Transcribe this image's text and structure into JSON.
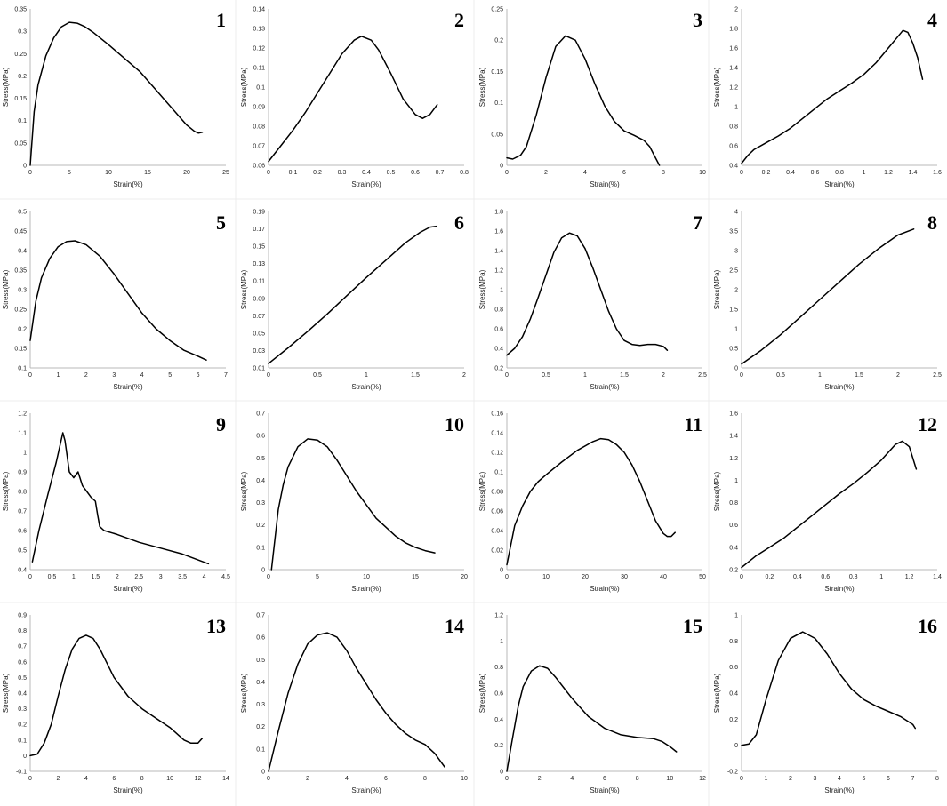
{
  "figure": {
    "title": "",
    "background": "#ffffff"
  },
  "chart_data": [
    {
      "panel": "1",
      "type": "line",
      "xlabel": "Strain(%)",
      "ylabel": "Stress(MPa)",
      "xlim": [
        0,
        25
      ],
      "ylim": [
        0,
        0.35
      ],
      "xticks": [
        "0",
        "5",
        "10",
        "15",
        "20",
        "25"
      ],
      "yticks": [
        "0",
        "0.05",
        "0.1",
        "0.15",
        "0.2",
        "0.25",
        "0.3",
        "0.35"
      ],
      "x": [
        0,
        0.5,
        1,
        2,
        3,
        4,
        5,
        6,
        7,
        8,
        10,
        12,
        14,
        16,
        18,
        19,
        20,
        21,
        21.5,
        22
      ],
      "y": [
        0,
        0.12,
        0.18,
        0.245,
        0.285,
        0.31,
        0.32,
        0.318,
        0.31,
        0.298,
        0.27,
        0.24,
        0.21,
        0.17,
        0.13,
        0.11,
        0.09,
        0.076,
        0.072,
        0.074
      ]
    },
    {
      "panel": "2",
      "type": "line",
      "xlabel": "Strain(%)",
      "ylabel": "Stress(MPa)",
      "xlim": [
        0,
        0.8
      ],
      "ylim": [
        0.06,
        0.14
      ],
      "xticks": [
        "0",
        "0.1",
        "0.2",
        "0.3",
        "0.4",
        "0.5",
        "0.6",
        "0.7",
        "0.8"
      ],
      "yticks": [
        "0.06",
        "0.07",
        "0.08",
        "0.09",
        "0.1",
        "0.11",
        "0.12",
        "0.13",
        "0.14"
      ],
      "x": [
        0,
        0.05,
        0.1,
        0.15,
        0.2,
        0.25,
        0.3,
        0.35,
        0.38,
        0.42,
        0.45,
        0.5,
        0.55,
        0.6,
        0.63,
        0.66,
        0.69
      ],
      "y": [
        0.062,
        0.07,
        0.078,
        0.087,
        0.097,
        0.107,
        0.117,
        0.124,
        0.126,
        0.124,
        0.119,
        0.107,
        0.094,
        0.086,
        0.084,
        0.086,
        0.091
      ]
    },
    {
      "panel": "3",
      "type": "line",
      "xlabel": "Strain(%)",
      "ylabel": "Stress(MPa)",
      "xlim": [
        0,
        10
      ],
      "ylim": [
        0,
        0.25
      ],
      "xticks": [
        "0",
        "2",
        "4",
        "6",
        "8",
        "10"
      ],
      "yticks": [
        "0",
        "0.05",
        "0.1",
        "0.15",
        "0.2",
        "0.25"
      ],
      "x": [
        0,
        0.3,
        0.7,
        1,
        1.5,
        2,
        2.5,
        3,
        3.5,
        4,
        4.5,
        5,
        5.5,
        6,
        6.5,
        7,
        7.3,
        7.6,
        7.8
      ],
      "y": [
        0.012,
        0.01,
        0.016,
        0.03,
        0.08,
        0.14,
        0.19,
        0.207,
        0.2,
        0.17,
        0.13,
        0.095,
        0.07,
        0.055,
        0.048,
        0.04,
        0.03,
        0.012,
        0
      ]
    },
    {
      "panel": "4",
      "type": "line",
      "xlabel": "Strain(%)",
      "ylabel": "Stress(MPa)",
      "xlim": [
        0,
        1.6
      ],
      "ylim": [
        0.4,
        2
      ],
      "xticks": [
        "0",
        "0.2",
        "0.4",
        "0.6",
        "0.8",
        "1",
        "1.2",
        "1.4",
        "1.6"
      ],
      "yticks": [
        "0.4",
        "0.6",
        "0.8",
        "1",
        "1.2",
        "1.4",
        "1.6",
        "1.8",
        "2"
      ],
      "x": [
        0,
        0.05,
        0.1,
        0.2,
        0.3,
        0.4,
        0.5,
        0.6,
        0.7,
        0.8,
        0.9,
        1,
        1.1,
        1.2,
        1.28,
        1.32,
        1.36,
        1.4,
        1.44,
        1.48
      ],
      "y": [
        0.42,
        0.5,
        0.56,
        0.63,
        0.7,
        0.78,
        0.88,
        0.98,
        1.08,
        1.16,
        1.24,
        1.33,
        1.45,
        1.6,
        1.72,
        1.78,
        1.76,
        1.65,
        1.5,
        1.28
      ]
    },
    {
      "panel": "5",
      "type": "line",
      "xlabel": "Strain(%)",
      "ylabel": "Stress(MPa)",
      "xlim": [
        0,
        7
      ],
      "ylim": [
        0.1,
        0.5
      ],
      "xticks": [
        "0",
        "1",
        "2",
        "3",
        "4",
        "5",
        "6",
        "7"
      ],
      "yticks": [
        "0.1",
        "0.15",
        "0.2",
        "0.25",
        "0.3",
        "0.35",
        "0.4",
        "0.45",
        "0.5"
      ],
      "x": [
        0,
        0.2,
        0.4,
        0.7,
        1,
        1.3,
        1.6,
        2,
        2.5,
        3,
        3.5,
        4,
        4.5,
        5,
        5.5,
        6,
        6.3
      ],
      "y": [
        0.17,
        0.27,
        0.33,
        0.38,
        0.41,
        0.423,
        0.425,
        0.415,
        0.385,
        0.34,
        0.29,
        0.24,
        0.2,
        0.17,
        0.145,
        0.13,
        0.12
      ]
    },
    {
      "panel": "6",
      "type": "line",
      "xlabel": "Strain(%)",
      "ylabel": "Stress(MPa)",
      "xlim": [
        0,
        2
      ],
      "ylim": [
        0.01,
        0.19
      ],
      "xticks": [
        "0",
        "0.5",
        "1",
        "1.5",
        "2"
      ],
      "yticks": [
        "0.01",
        "0.03",
        "0.05",
        "0.07",
        "0.09",
        "0.11",
        "0.13",
        "0.15",
        "0.17",
        "0.19"
      ],
      "x": [
        0,
        0.2,
        0.4,
        0.6,
        0.8,
        1,
        1.2,
        1.4,
        1.55,
        1.65,
        1.72
      ],
      "y": [
        0.015,
        0.033,
        0.052,
        0.072,
        0.093,
        0.114,
        0.134,
        0.154,
        0.166,
        0.172,
        0.173
      ]
    },
    {
      "panel": "7",
      "type": "line",
      "xlabel": "Strain(%)",
      "ylabel": "Stress(MPa)",
      "xlim": [
        0,
        2.5
      ],
      "ylim": [
        0.2,
        1.8
      ],
      "xticks": [
        "0",
        "0.5",
        "1",
        "1.5",
        "2",
        "2.5"
      ],
      "yticks": [
        "0.2",
        "0.4",
        "0.6",
        "0.8",
        "1",
        "1.2",
        "1.4",
        "1.6",
        "1.8"
      ],
      "x": [
        0,
        0.1,
        0.2,
        0.3,
        0.4,
        0.5,
        0.6,
        0.7,
        0.8,
        0.9,
        1,
        1.1,
        1.2,
        1.3,
        1.4,
        1.5,
        1.6,
        1.7,
        1.8,
        1.9,
        2,
        2.05
      ],
      "y": [
        0.33,
        0.4,
        0.52,
        0.7,
        0.92,
        1.15,
        1.38,
        1.53,
        1.58,
        1.55,
        1.42,
        1.22,
        1,
        0.78,
        0.6,
        0.48,
        0.44,
        0.43,
        0.44,
        0.44,
        0.42,
        0.38
      ]
    },
    {
      "panel": "8",
      "type": "line",
      "xlabel": "Strain(%)",
      "ylabel": "Stress(MPa)",
      "xlim": [
        0,
        2.5
      ],
      "ylim": [
        0,
        4
      ],
      "xticks": [
        "0",
        "0.5",
        "1",
        "1.5",
        "2",
        "2.5"
      ],
      "yticks": [
        "0",
        "0.5",
        "1",
        "1.5",
        "2",
        "2.5",
        "3",
        "3.5",
        "4"
      ],
      "x": [
        0,
        0.25,
        0.5,
        0.75,
        1,
        1.25,
        1.5,
        1.75,
        2,
        2.2
      ],
      "y": [
        0.1,
        0.45,
        0.85,
        1.3,
        1.75,
        2.2,
        2.65,
        3.05,
        3.4,
        3.55
      ]
    },
    {
      "panel": "9",
      "type": "line",
      "xlabel": "Strain(%)",
      "ylabel": "Stress(MPa)",
      "xlim": [
        0,
        4.5
      ],
      "ylim": [
        0.4,
        1.2
      ],
      "xticks": [
        "0",
        "0.5",
        "1",
        "1.5",
        "2",
        "2.5",
        "3",
        "3.5",
        "4",
        "4.5"
      ],
      "yticks": [
        "0.4",
        "0.5",
        "0.6",
        "0.7",
        "0.8",
        "0.9",
        "1",
        "1.1",
        "1.2"
      ],
      "x": [
        0.05,
        0.2,
        0.4,
        0.6,
        0.75,
        0.8,
        0.9,
        1,
        1.1,
        1.2,
        1.3,
        1.4,
        1.5,
        1.55,
        1.6,
        1.7,
        2,
        2.5,
        3,
        3.5,
        4.1
      ],
      "y": [
        0.44,
        0.6,
        0.78,
        0.95,
        1.1,
        1.06,
        0.9,
        0.87,
        0.9,
        0.83,
        0.8,
        0.77,
        0.75,
        0.68,
        0.62,
        0.6,
        0.58,
        0.54,
        0.51,
        0.48,
        0.43
      ]
    },
    {
      "panel": "10",
      "type": "line",
      "xlabel": "Strain(%)",
      "ylabel": "Stress(MPa)",
      "xlim": [
        0,
        20
      ],
      "ylim": [
        0,
        0.7
      ],
      "xticks": [
        "0",
        "5",
        "10",
        "15",
        "20"
      ],
      "yticks": [
        "0",
        "0.1",
        "0.2",
        "0.3",
        "0.4",
        "0.5",
        "0.6",
        "0.7"
      ],
      "x": [
        0.3,
        1,
        1.5,
        2,
        3,
        4,
        5,
        6,
        7,
        8,
        9,
        10,
        11,
        12,
        13,
        14,
        15,
        16,
        17
      ],
      "y": [
        0,
        0.27,
        0.38,
        0.46,
        0.55,
        0.585,
        0.58,
        0.55,
        0.49,
        0.42,
        0.35,
        0.29,
        0.23,
        0.19,
        0.15,
        0.12,
        0.1,
        0.085,
        0.075
      ]
    },
    {
      "panel": "11",
      "type": "line",
      "xlabel": "Strain(%)",
      "ylabel": "Stress(MPa)",
      "xlim": [
        0,
        50
      ],
      "ylim": [
        0,
        0.16
      ],
      "xticks": [
        "0",
        "10",
        "20",
        "30",
        "40",
        "50"
      ],
      "yticks": [
        "0",
        "0.02",
        "0.04",
        "0.06",
        "0.08",
        "0.1",
        "0.12",
        "0.14",
        "0.16"
      ],
      "x": [
        0,
        1,
        2,
        4,
        6,
        8,
        10,
        14,
        18,
        22,
        24,
        26,
        28,
        30,
        32,
        34,
        36,
        38,
        40,
        41,
        42,
        43
      ],
      "y": [
        0.005,
        0.025,
        0.045,
        0.065,
        0.08,
        0.09,
        0.097,
        0.11,
        0.122,
        0.131,
        0.134,
        0.133,
        0.128,
        0.12,
        0.107,
        0.09,
        0.07,
        0.05,
        0.037,
        0.034,
        0.034,
        0.038
      ]
    },
    {
      "panel": "12",
      "type": "line",
      "xlabel": "Strain(%)",
      "ylabel": "Stress(MPa)",
      "xlim": [
        0,
        1.4
      ],
      "ylim": [
        0.2,
        1.6
      ],
      "xticks": [
        "0",
        "0.2",
        "0.4",
        "0.6",
        "0.8",
        "1",
        "1.2",
        "1.4"
      ],
      "yticks": [
        "0.2",
        "0.4",
        "0.6",
        "0.8",
        "1",
        "1.2",
        "1.4",
        "1.6"
      ],
      "x": [
        0,
        0.05,
        0.1,
        0.2,
        0.3,
        0.4,
        0.5,
        0.6,
        0.7,
        0.8,
        0.9,
        1,
        1.05,
        1.1,
        1.15,
        1.2,
        1.25
      ],
      "y": [
        0.22,
        0.27,
        0.32,
        0.4,
        0.48,
        0.58,
        0.68,
        0.78,
        0.88,
        0.97,
        1.07,
        1.18,
        1.25,
        1.32,
        1.35,
        1.3,
        1.1
      ]
    },
    {
      "panel": "13",
      "type": "line",
      "xlabel": "Strain(%)",
      "ylabel": "Stress(MPa)",
      "xlim": [
        0,
        14
      ],
      "ylim": [
        -0.1,
        0.9
      ],
      "xticks": [
        "0",
        "2",
        "4",
        "6",
        "8",
        "10",
        "12",
        "14"
      ],
      "yticks": [
        "-0.1",
        "0",
        "0.1",
        "0.2",
        "0.3",
        "0.4",
        "0.5",
        "0.6",
        "0.7",
        "0.8",
        "0.9"
      ],
      "x": [
        0,
        0.5,
        1,
        1.5,
        2,
        2.5,
        3,
        3.5,
        4,
        4.5,
        5,
        6,
        7,
        8,
        9,
        10,
        11,
        11.5,
        12,
        12.3
      ],
      "y": [
        0,
        0.01,
        0.08,
        0.2,
        0.38,
        0.55,
        0.68,
        0.75,
        0.77,
        0.75,
        0.68,
        0.5,
        0.38,
        0.3,
        0.24,
        0.18,
        0.1,
        0.08,
        0.08,
        0.11
      ]
    },
    {
      "panel": "14",
      "type": "line",
      "xlabel": "Strain(%)",
      "ylabel": "Stress(MPa)",
      "xlim": [
        0,
        10
      ],
      "ylim": [
        0,
        0.7
      ],
      "xticks": [
        "0",
        "2",
        "4",
        "6",
        "8",
        "10"
      ],
      "yticks": [
        "0",
        "0.1",
        "0.2",
        "0.3",
        "0.4",
        "0.5",
        "0.6",
        "0.7"
      ],
      "x": [
        0,
        0.5,
        1,
        1.5,
        2,
        2.5,
        3,
        3.5,
        4,
        4.5,
        5,
        5.5,
        6,
        6.5,
        7,
        7.5,
        8,
        8.5,
        9
      ],
      "y": [
        0,
        0.18,
        0.35,
        0.48,
        0.57,
        0.61,
        0.62,
        0.6,
        0.54,
        0.46,
        0.39,
        0.32,
        0.26,
        0.21,
        0.17,
        0.14,
        0.12,
        0.08,
        0.02
      ]
    },
    {
      "panel": "15",
      "type": "line",
      "xlabel": "Strain(%)",
      "ylabel": "Stress(MPa)",
      "xlim": [
        0,
        12
      ],
      "ylim": [
        0,
        1.2
      ],
      "xticks": [
        "0",
        "2",
        "4",
        "6",
        "8",
        "10",
        "12"
      ],
      "yticks": [
        "0",
        "0.2",
        "0.4",
        "0.6",
        "0.8",
        "1",
        "1.2"
      ],
      "x": [
        0,
        0.3,
        0.7,
        1,
        1.5,
        2,
        2.5,
        3,
        4,
        5,
        6,
        7,
        8,
        9,
        9.5,
        10,
        10.4
      ],
      "y": [
        0,
        0.22,
        0.5,
        0.65,
        0.77,
        0.81,
        0.79,
        0.72,
        0.56,
        0.42,
        0.33,
        0.28,
        0.26,
        0.25,
        0.23,
        0.19,
        0.15
      ]
    },
    {
      "panel": "16",
      "type": "line",
      "xlabel": "Strain(%)",
      "ylabel": "Stress(MPa)",
      "xlim": [
        0,
        8
      ],
      "ylim": [
        -0.2,
        1
      ],
      "xticks": [
        "0",
        "1",
        "2",
        "3",
        "4",
        "5",
        "6",
        "7",
        "8"
      ],
      "yticks": [
        "-0.2",
        "0",
        "0.2",
        "0.4",
        "0.6",
        "0.8",
        "1"
      ],
      "x": [
        0,
        0.3,
        0.6,
        1,
        1.5,
        2,
        2.5,
        3,
        3.5,
        4,
        4.5,
        5,
        5.5,
        6,
        6.5,
        7,
        7.1
      ],
      "y": [
        0,
        0.01,
        0.08,
        0.35,
        0.65,
        0.82,
        0.87,
        0.82,
        0.7,
        0.55,
        0.43,
        0.35,
        0.3,
        0.26,
        0.22,
        0.16,
        0.13
      ]
    }
  ]
}
